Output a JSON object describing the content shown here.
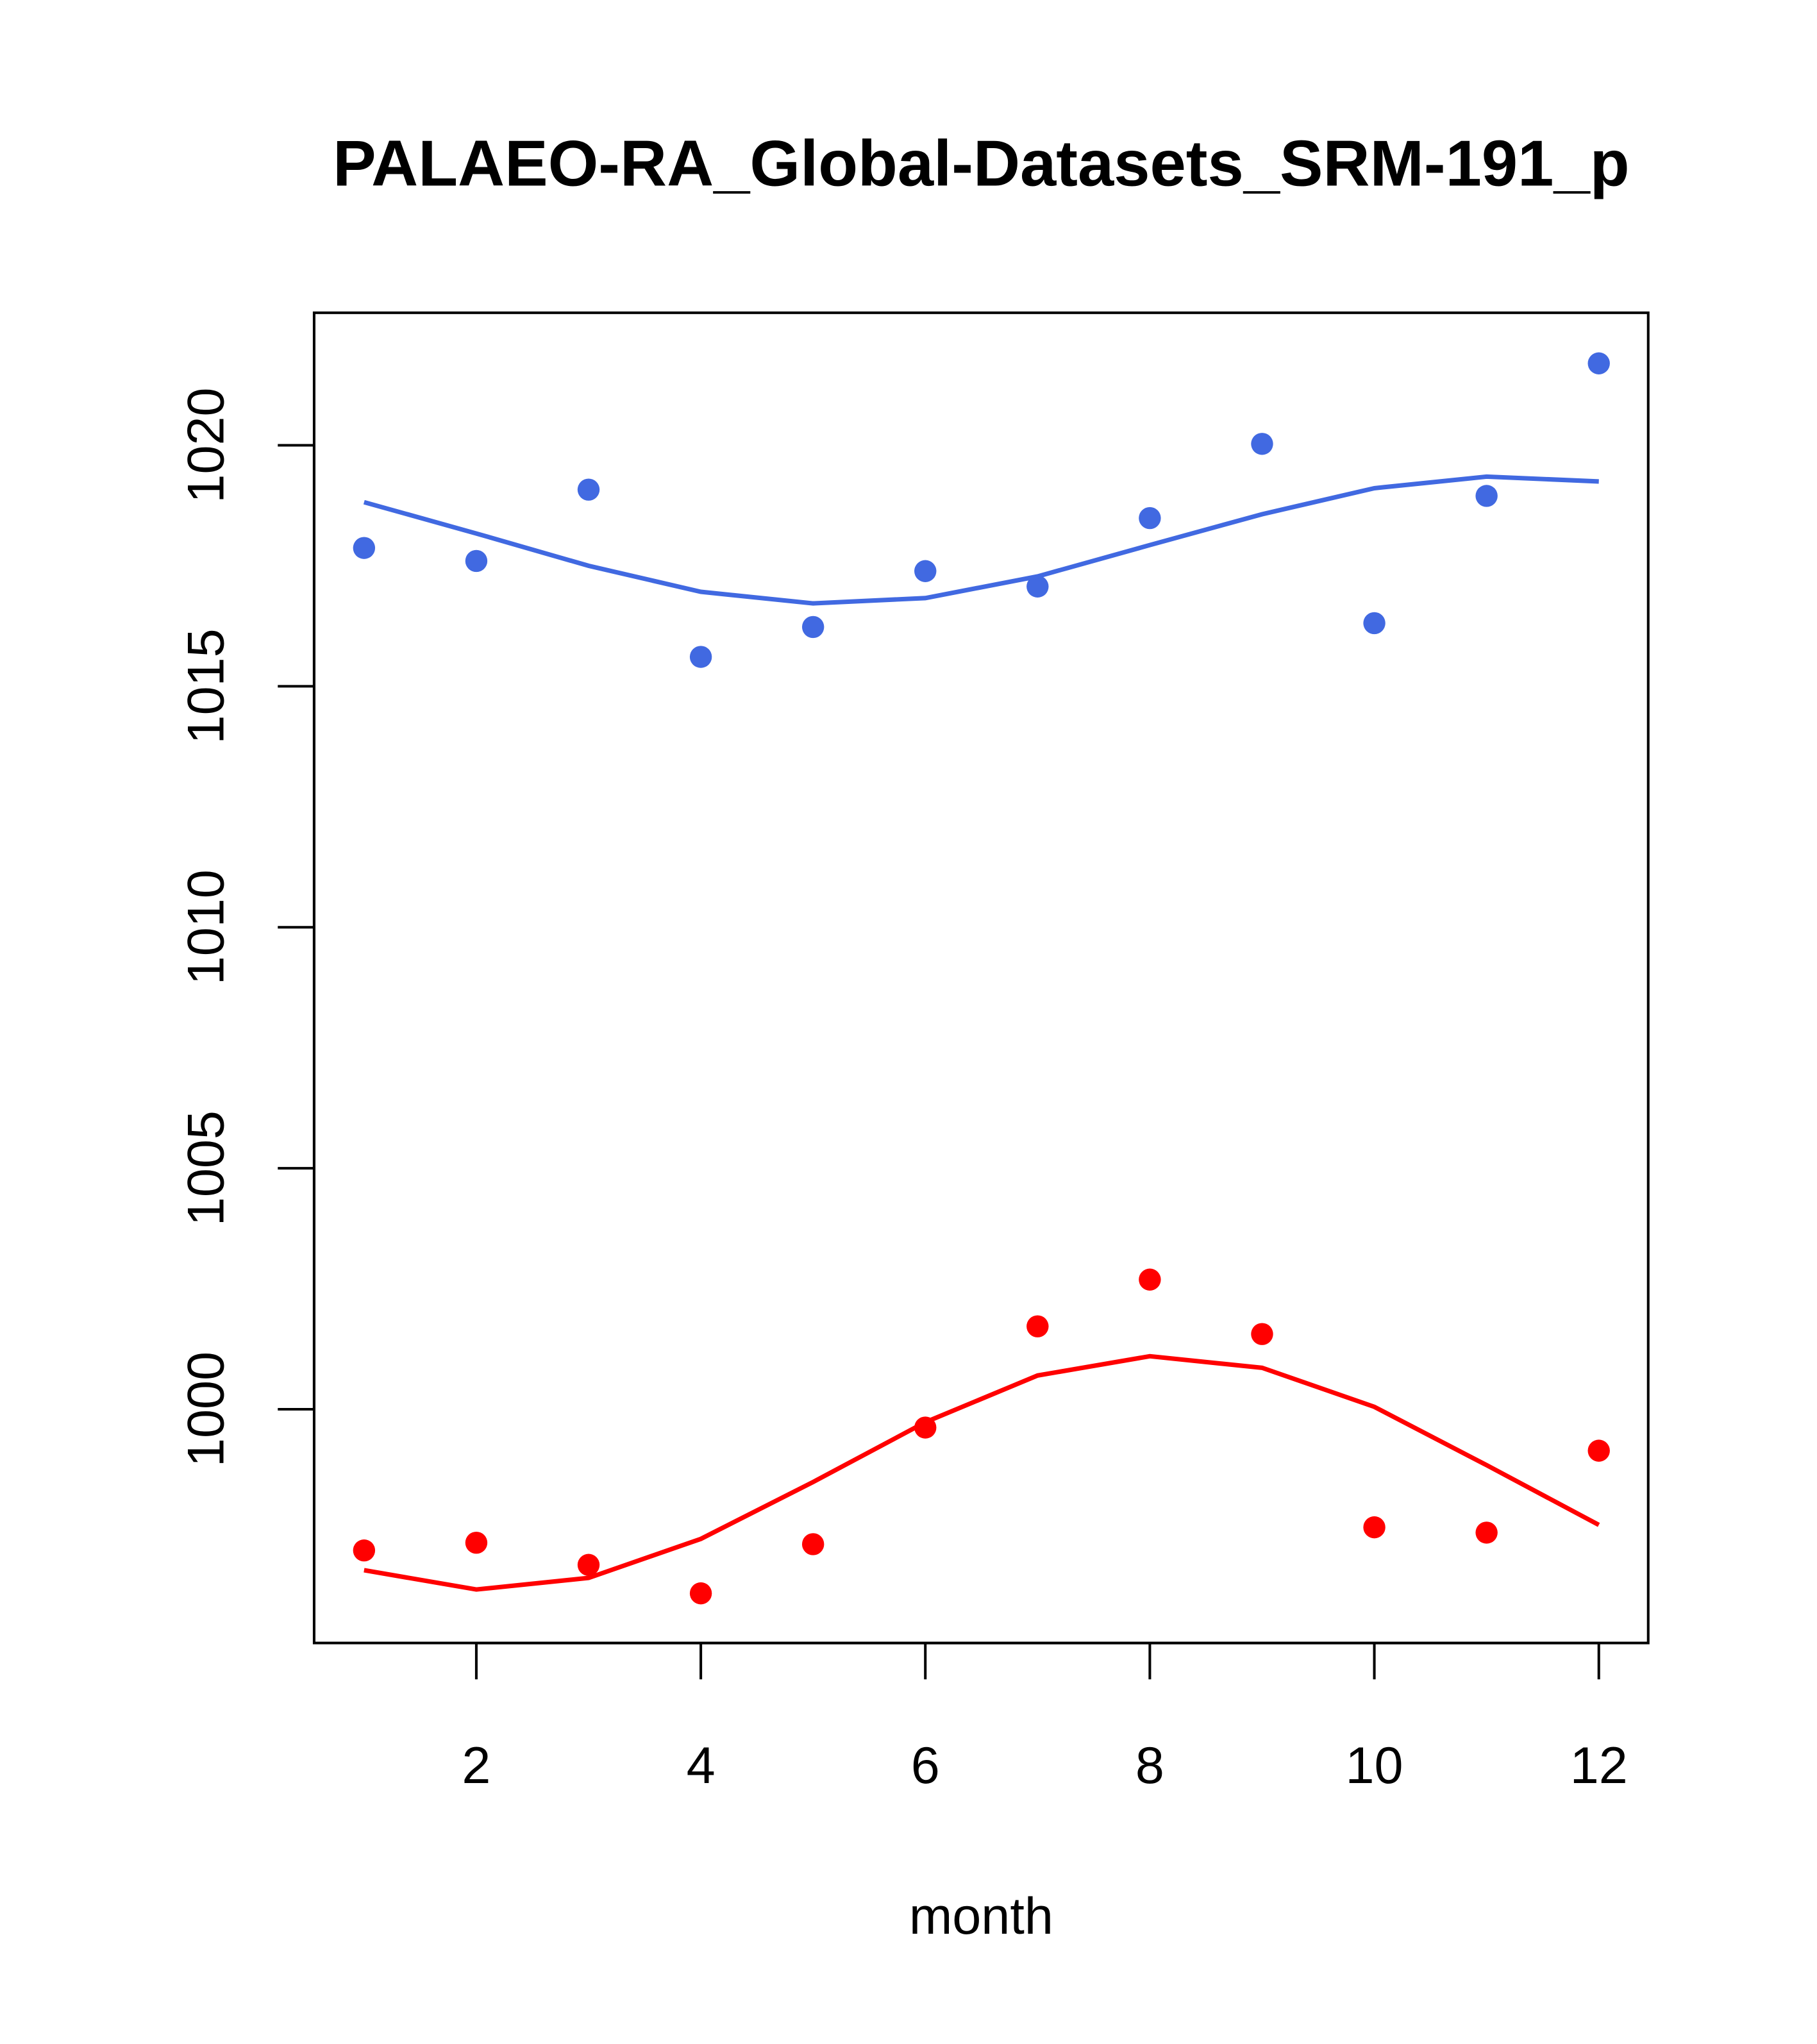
{
  "chart_data": {
    "type": "scatter",
    "title": "PALAEO-RA_Global-Datasets_SRM-191_p",
    "xlabel": "month",
    "ylabel": "",
    "xlim": [
      0.555,
      12.44
    ],
    "ylim": [
      995.15,
      1022.75
    ],
    "xticks": [
      2,
      4,
      6,
      8,
      10,
      12
    ],
    "xtick_labels": [
      "2",
      "4",
      "6",
      "8",
      "10",
      "12"
    ],
    "yticks": [
      1000,
      1005,
      1010,
      1015,
      1020
    ],
    "ytick_labels": [
      "1000",
      "1005",
      "1010",
      "1015",
      "1020"
    ],
    "grid": false,
    "x": [
      1,
      2,
      3,
      4,
      5,
      6,
      7,
      8,
      9,
      10,
      11,
      12
    ],
    "series": [
      {
        "name": "blue-points",
        "color": "#4169E1",
        "kind": "points",
        "values": [
          1017.87,
          1017.6,
          1019.08,
          1015.61,
          1016.23,
          1017.39,
          1017.07,
          1018.49,
          1020.03,
          1016.31,
          1018.95,
          1021.7
        ]
      },
      {
        "name": "blue-smooth",
        "color": "#4169E1",
        "kind": "line",
        "values": [
          1018.82,
          1018.17,
          1017.5,
          1016.96,
          1016.72,
          1016.83,
          1017.28,
          1017.93,
          1018.57,
          1019.11,
          1019.35,
          1019.25
        ]
      },
      {
        "name": "red-points",
        "color": "#FF0000",
        "kind": "points",
        "values": [
          997.07,
          997.23,
          996.77,
          996.18,
          997.2,
          999.62,
          1001.72,
          1002.69,
          1001.56,
          997.55,
          997.44,
          999.14
        ]
      },
      {
        "name": "red-smooth",
        "color": "#FF0000",
        "kind": "line",
        "values": [
          996.66,
          996.26,
          996.5,
          997.31,
          998.49,
          999.73,
          1000.7,
          1001.1,
          1000.86,
          1000.05,
          998.84,
          997.6
        ]
      }
    ]
  }
}
